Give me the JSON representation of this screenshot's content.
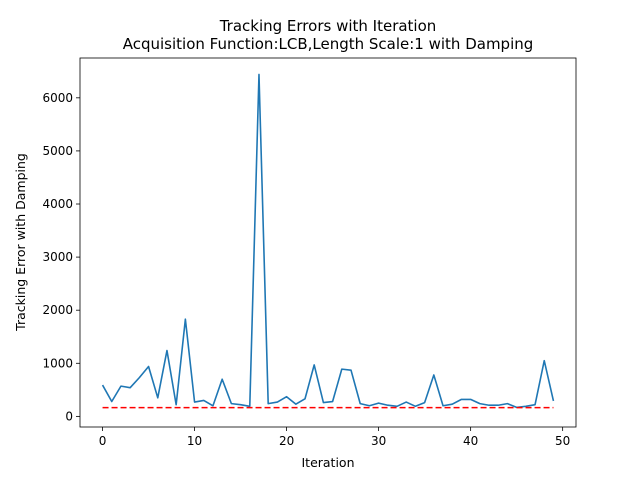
{
  "chart_data": {
    "type": "line",
    "title": "Tracking Errors with Iteration",
    "subtitle": "Acquisition Function:LCB,Length Scale:1 with Damping",
    "xlabel": "Iteration",
    "ylabel": "Tracking Error with Damping",
    "xlim": [
      -2.45,
      51.45
    ],
    "ylim": [
      -200,
      6750
    ],
    "xticks": [
      0,
      10,
      20,
      30,
      40,
      50
    ],
    "yticks": [
      0,
      1000,
      2000,
      3000,
      4000,
      5000,
      6000
    ],
    "grid": false,
    "x": [
      0,
      1,
      2,
      3,
      4,
      5,
      6,
      7,
      8,
      9,
      10,
      11,
      12,
      13,
      14,
      15,
      16,
      17,
      18,
      19,
      20,
      21,
      22,
      23,
      24,
      25,
      26,
      27,
      28,
      29,
      30,
      31,
      32,
      33,
      34,
      35,
      36,
      37,
      38,
      39,
      40,
      41,
      42,
      43,
      44,
      45,
      46,
      47,
      48,
      49
    ],
    "series": [
      {
        "color": "#1f77b4",
        "style": "solid",
        "values": [
          590,
          280,
          570,
          540,
          730,
          940,
          350,
          1240,
          220,
          1830,
          270,
          300,
          200,
          700,
          240,
          220,
          190,
          6440,
          240,
          270,
          370,
          230,
          330,
          970,
          260,
          280,
          890,
          870,
          240,
          200,
          250,
          210,
          190,
          270,
          190,
          260,
          780,
          200,
          230,
          320,
          320,
          240,
          210,
          210,
          240,
          170,
          190,
          220,
          1050,
          290
        ]
      },
      {
        "color": "#ff0000",
        "style": "dashed",
        "values": [
          165,
          165,
          165,
          165,
          165,
          165,
          165,
          165,
          165,
          165,
          165,
          165,
          165,
          165,
          165,
          165,
          165,
          165,
          165,
          165,
          165,
          165,
          165,
          165,
          165,
          165,
          165,
          165,
          165,
          165,
          165,
          165,
          165,
          165,
          165,
          165,
          165,
          165,
          165,
          165,
          165,
          165,
          165,
          165,
          165,
          165,
          165,
          165,
          165,
          165
        ]
      }
    ]
  }
}
